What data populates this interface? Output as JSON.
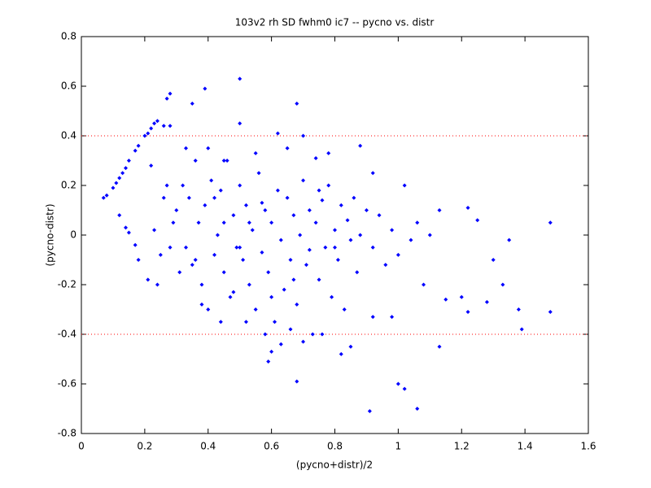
{
  "chart_data": {
    "type": "scatter",
    "title": "103v2 rh SD fwhm0 ic7 -- pycno vs. distr",
    "xlabel": "(pycno+distr)/2",
    "ylabel": "(pycno-distr)",
    "color": "#0000ff",
    "x": [
      0.07,
      0.08,
      0.1,
      0.11,
      0.12,
      0.13,
      0.14,
      0.15,
      0.17,
      0.18,
      0.2,
      0.21,
      0.22,
      0.23,
      0.24,
      0.26,
      0.28,
      0.27,
      0.28,
      0.39,
      0.5,
      0.35,
      0.5,
      0.68,
      0.12,
      0.14,
      0.15,
      0.18,
      0.17,
      0.21,
      0.91,
      1.06,
      1.0,
      1.02,
      1.13,
      0.68,
      1.48,
      1.48,
      1.38,
      1.39,
      1.35,
      1.25,
      1.22,
      1.3,
      1.33,
      1.2,
      1.22,
      1.13,
      1.15,
      1.28,
      0.6,
      0.59,
      0.82,
      0.92,
      0.98,
      0.3,
      0.32,
      0.33,
      0.34,
      0.35,
      0.36,
      0.37,
      0.38,
      0.39,
      0.4,
      0.41,
      0.42,
      0.43,
      0.44,
      0.45,
      0.46,
      0.47,
      0.48,
      0.49,
      0.5,
      0.51,
      0.52,
      0.53,
      0.54,
      0.55,
      0.56,
      0.57,
      0.58,
      0.59,
      0.6,
      0.61,
      0.62,
      0.63,
      0.64,
      0.65,
      0.66,
      0.67,
      0.68,
      0.69,
      0.7,
      0.71,
      0.72,
      0.73,
      0.74,
      0.75,
      0.76,
      0.77,
      0.78,
      0.79,
      0.8,
      0.81,
      0.82,
      0.83,
      0.84,
      0.85,
      0.86,
      0.87,
      0.88,
      0.9,
      0.92,
      0.94,
      0.96,
      0.98,
      1.0,
      1.02,
      1.04,
      1.06,
      1.08,
      1.1,
      0.26,
      0.27,
      0.28,
      0.29,
      0.25,
      0.23,
      0.22,
      0.24,
      0.31,
      0.33,
      0.4,
      0.45,
      0.52,
      0.55,
      0.62,
      0.65,
      0.7,
      0.74,
      0.78,
      0.88,
      0.92,
      0.48,
      0.58,
      0.63,
      0.66,
      0.7,
      0.76,
      0.85,
      0.44,
      0.38,
      0.36,
      0.53,
      0.57,
      0.6,
      0.67,
      0.72,
      0.75,
      0.8,
      0.5,
      0.45,
      0.42
    ],
    "values": [
      0.15,
      0.16,
      0.19,
      0.21,
      0.23,
      0.25,
      0.27,
      0.3,
      0.34,
      0.36,
      0.4,
      0.41,
      0.43,
      0.45,
      0.46,
      0.44,
      0.44,
      0.55,
      0.57,
      0.59,
      0.63,
      0.53,
      0.45,
      0.53,
      0.08,
      0.03,
      0.01,
      -0.1,
      -0.04,
      -0.18,
      -0.71,
      -0.7,
      -0.6,
      -0.62,
      -0.45,
      -0.59,
      0.05,
      -0.31,
      -0.3,
      -0.38,
      -0.02,
      0.06,
      0.11,
      -0.1,
      -0.2,
      -0.25,
      -0.31,
      0.1,
      -0.26,
      -0.27,
      -0.47,
      -0.51,
      -0.48,
      -0.33,
      -0.33,
      0.1,
      0.2,
      -0.05,
      0.15,
      -0.12,
      0.3,
      0.05,
      -0.2,
      0.12,
      -0.3,
      0.22,
      -0.08,
      0.0,
      0.18,
      -0.15,
      0.3,
      -0.25,
      0.08,
      -0.05,
      0.2,
      -0.1,
      0.12,
      -0.2,
      0.02,
      -0.3,
      0.25,
      -0.07,
      0.1,
      -0.15,
      0.05,
      -0.35,
      0.18,
      -0.02,
      -0.22,
      0.15,
      -0.1,
      0.08,
      -0.28,
      0.0,
      0.22,
      -0.12,
      0.1,
      -0.4,
      0.05,
      -0.18,
      0.14,
      -0.05,
      0.2,
      -0.25,
      0.02,
      -0.1,
      0.12,
      -0.3,
      0.06,
      -0.02,
      0.15,
      -0.15,
      0.0,
      0.1,
      -0.05,
      0.08,
      -0.12,
      0.02,
      -0.08,
      0.2,
      -0.02,
      0.05,
      -0.2,
      0.0,
      0.15,
      0.2,
      -0.05,
      0.05,
      -0.08,
      0.02,
      0.28,
      -0.2,
      -0.15,
      0.35,
      0.35,
      0.3,
      -0.35,
      0.33,
      0.41,
      0.35,
      0.4,
      0.31,
      0.33,
      0.36,
      0.25,
      -0.23,
      -0.4,
      -0.44,
      -0.38,
      -0.43,
      -0.4,
      -0.45,
      -0.35,
      -0.28,
      -0.1,
      0.05,
      0.13,
      -0.25,
      -0.18,
      -0.06,
      0.18,
      -0.05,
      -0.05,
      0.05,
      0.15
    ],
    "xlim": [
      0,
      1.6
    ],
    "xticks": [
      0,
      0.2,
      0.4,
      0.6,
      0.8,
      1,
      1.2,
      1.4,
      1.6
    ],
    "ylim": [
      -0.8,
      0.8
    ],
    "yticks": [
      -0.8,
      -0.6,
      -0.4,
      -0.2,
      0,
      0.2,
      0.4,
      0.6,
      0.8
    ],
    "hlines": [
      0.4,
      -0.4
    ],
    "hline_color": "#ff0000"
  }
}
